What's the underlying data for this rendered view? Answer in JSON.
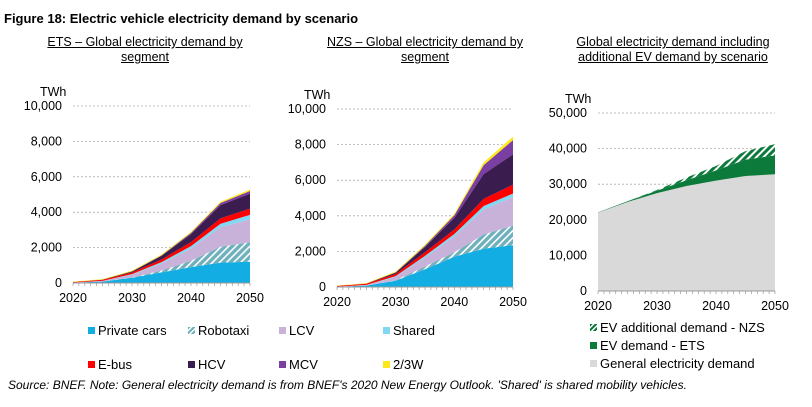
{
  "figure_title": "Figure 18: Electric vehicle electricity demand by scenario",
  "source": "Source: BNEF. Note: General electricity demand is from BNEF's 2020 New Energy Outlook. 'Shared' is shared mobility vehicles.",
  "chart_data": [
    {
      "type": "area",
      "stacked": true,
      "title": "ETS – Global electricity demand by segment",
      "ylabel": "TWh",
      "x": [
        2020,
        2025,
        2030,
        2035,
        2040,
        2045,
        2050
      ],
      "xticks": [
        "2020",
        "2030",
        "2040",
        "2050"
      ],
      "yticks": [
        "0",
        "2,000",
        "4,000",
        "6,000",
        "8,000",
        "10,000"
      ],
      "ylim": [
        0,
        10000
      ],
      "grid": true,
      "series": [
        {
          "name": "Private cars",
          "color": "#12ade3",
          "values": [
            20,
            80,
            300,
            600,
            900,
            1150,
            1200
          ]
        },
        {
          "name": "Robotaxi",
          "color": "#6fb0bd",
          "hatched": true,
          "values": [
            0,
            0,
            20,
            100,
            350,
            900,
            1100
          ]
        },
        {
          "name": "LCV",
          "color": "#c8b2da",
          "values": [
            10,
            30,
            150,
            400,
            700,
            1100,
            1300
          ]
        },
        {
          "name": "Shared",
          "color": "#80d8f2",
          "values": [
            0,
            10,
            30,
            80,
            130,
            200,
            250
          ]
        },
        {
          "name": "E-bus",
          "color": "#ff0000",
          "values": [
            30,
            60,
            100,
            150,
            230,
            300,
            350
          ]
        },
        {
          "name": "HCV",
          "color": "#3a1d4e",
          "values": [
            0,
            10,
            50,
            200,
            450,
            750,
            850
          ]
        },
        {
          "name": "MCV",
          "color": "#7b3ea3",
          "values": [
            0,
            0,
            10,
            30,
            70,
            120,
            150
          ]
        },
        {
          "name": "2/3W",
          "color": "#ffe81a",
          "values": [
            20,
            30,
            40,
            50,
            60,
            70,
            80
          ]
        }
      ]
    },
    {
      "type": "area",
      "stacked": true,
      "title": "NZS – Global electricity demand by segment",
      "ylabel": "TWh",
      "x": [
        2020,
        2025,
        2030,
        2035,
        2040,
        2045,
        2050
      ],
      "xticks": [
        "2020",
        "2030",
        "2040",
        "2050"
      ],
      "yticks": [
        "0",
        "2,000",
        "4,000",
        "6,000",
        "8,000",
        "10,000"
      ],
      "ylim": [
        0,
        10000
      ],
      "grid": true,
      "series": [
        {
          "name": "Private cars",
          "color": "#12ade3",
          "values": [
            20,
            80,
            350,
            1000,
            1700,
            2150,
            2350
          ]
        },
        {
          "name": "Robotaxi",
          "color": "#6fb0bd",
          "hatched": true,
          "values": [
            0,
            0,
            20,
            150,
            250,
            800,
            1100
          ]
        },
        {
          "name": "LCV",
          "color": "#c8b2da",
          "values": [
            10,
            30,
            200,
            500,
            900,
            1400,
            1600
          ]
        },
        {
          "name": "Shared",
          "color": "#80d8f2",
          "values": [
            0,
            10,
            40,
            100,
            130,
            200,
            200
          ]
        },
        {
          "name": "E-bus",
          "color": "#ff0000",
          "values": [
            30,
            60,
            120,
            200,
            250,
            400,
            500
          ]
        },
        {
          "name": "HCV",
          "color": "#3a1d4e",
          "values": [
            0,
            10,
            80,
            300,
            650,
            1400,
            1700
          ]
        },
        {
          "name": "MCV",
          "color": "#7b3ea3",
          "values": [
            0,
            0,
            10,
            60,
            150,
            500,
            800
          ]
        },
        {
          "name": "2/3W",
          "color": "#ffe81a",
          "values": [
            20,
            30,
            50,
            70,
            80,
            150,
            200
          ]
        }
      ]
    },
    {
      "type": "area",
      "stacked": true,
      "title": "Global electricity demand including additional EV demand by scenario",
      "ylabel": "TWh",
      "x": [
        2020,
        2025,
        2030,
        2035,
        2040,
        2045,
        2050
      ],
      "xticks": [
        "2020",
        "2030",
        "2040",
        "2050"
      ],
      "yticks": [
        "0",
        "10,000",
        "20,000",
        "30,000",
        "40,000",
        "50,000"
      ],
      "ylim": [
        0,
        50000
      ],
      "grid": true,
      "series": [
        {
          "name": "General electricity demand",
          "color": "#d9d9d9",
          "values": [
            22000,
            25000,
            27500,
            29500,
            31000,
            32300,
            32800
          ]
        },
        {
          "name": "EV demand - ETS",
          "color": "#0b7a3b",
          "values": [
            80,
            220,
            700,
            1610,
            2890,
            4590,
            5280
          ]
        },
        {
          "name": "EV additional demand - NZS",
          "color": "#0b7a3b",
          "hatched": true,
          "values": [
            0,
            0,
            170,
            770,
            1220,
            2410,
            3170
          ]
        }
      ]
    }
  ],
  "legend_left": [
    "Private cars",
    "Robotaxi",
    "LCV",
    "Shared",
    "E-bus",
    "HCV",
    "MCV",
    "2/3W"
  ],
  "legend_right": [
    "EV additional demand - NZS",
    "EV demand - ETS",
    "General electricity demand"
  ]
}
